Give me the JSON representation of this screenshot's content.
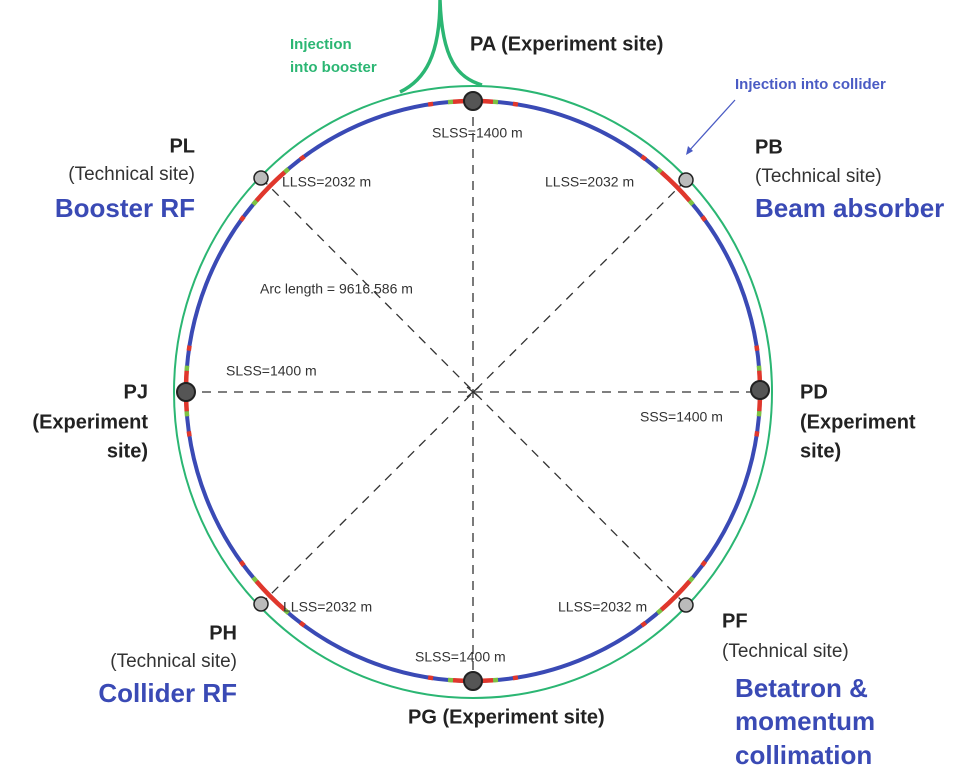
{
  "injection_booster": [
    "Injection",
    "into booster"
  ],
  "injection_collider": "Injection into collider",
  "arc_length": "Arc length = 9616.586 m",
  "sites": {
    "PA": {
      "name": "PA (Experiment site)"
    },
    "PB": {
      "name": "PB",
      "desc": "(Technical site)",
      "role": "Beam absorber"
    },
    "PD": {
      "name": "PD",
      "desc": [
        "(Experiment",
        "site)"
      ]
    },
    "PF": {
      "name": "PF",
      "desc": "(Technical site)",
      "role": [
        "Betatron &",
        "momentum",
        "collimation"
      ]
    },
    "PG": {
      "name": "PG (Experiment site)"
    },
    "PH": {
      "name": "PH",
      "desc": "(Technical site)",
      "role": "Collider RF"
    },
    "PJ": {
      "name": "PJ",
      "desc": [
        "(Experiment",
        "site)"
      ]
    },
    "PL": {
      "name": "PL",
      "desc": "(Technical site)",
      "role": "Booster RF"
    }
  },
  "straights": {
    "PA": "SLSS=1400 m",
    "PB": "LLSS=2032 m",
    "PD": "SSS=1400 m",
    "PF": "LLSS=2032 m",
    "PG": "SLSS=1400 m",
    "PH": "LLSS=2032 m",
    "PJ": "SLSS=1400 m",
    "PL": "LLSS=2032 m"
  }
}
